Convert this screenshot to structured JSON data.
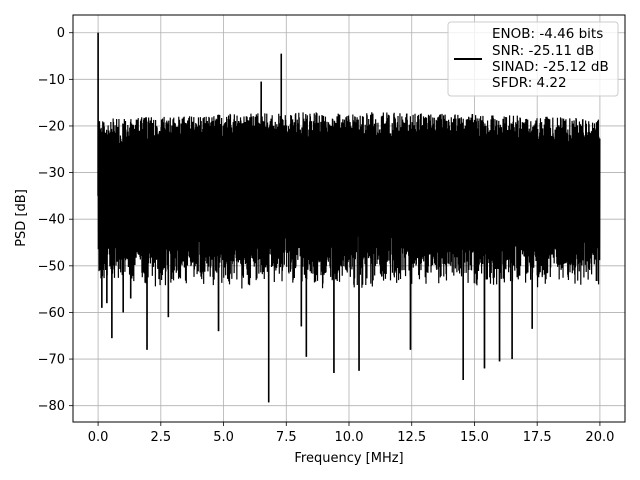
{
  "chart_data": {
    "type": "line",
    "title": "",
    "xlabel": "Frequency [MHz]",
    "ylabel": "PSD [dB]",
    "xlim": [
      -1.0,
      21.0
    ],
    "ylim": [
      -83.5,
      3.8
    ],
    "grid": true,
    "legend_placement": "top-right",
    "x_ticks": [
      0.0,
      2.5,
      5.0,
      7.5,
      10.0,
      12.5,
      15.0,
      17.5,
      20.0
    ],
    "x_tick_labels": [
      "0.0",
      "2.5",
      "5.0",
      "7.5",
      "10.0",
      "12.5",
      "15.0",
      "17.5",
      "20.0"
    ],
    "y_ticks": [
      0,
      -10,
      -20,
      -30,
      -40,
      -50,
      -60,
      -70,
      -80
    ],
    "y_tick_labels": [
      "0",
      "−10",
      "−20",
      "−30",
      "−40",
      "−50",
      "−60",
      "−70",
      "−80"
    ],
    "series": [
      {
        "color": "#000000",
        "legend_lines": [
          "ENOB: -4.46 bits",
          "SNR: -25.11 dB",
          "SINAD: -25.12 dB",
          "SFDR: 4.22"
        ],
        "noise_band": {
          "x_range": [
            0.0,
            20.0
          ],
          "upper_envelope": [
            -20,
            -17
          ],
          "typical_lower": [
            -48,
            -55
          ]
        },
        "spikes": [
          {
            "x": 0.0,
            "y": 0.0
          },
          {
            "x": 0.05,
            "y": -19
          },
          {
            "x": 0.15,
            "y": -59
          },
          {
            "x": 0.35,
            "y": -58
          },
          {
            "x": 0.55,
            "y": -65.5
          },
          {
            "x": 1.0,
            "y": -60
          },
          {
            "x": 1.3,
            "y": -57
          },
          {
            "x": 1.95,
            "y": -68
          },
          {
            "x": 2.8,
            "y": -61
          },
          {
            "x": 4.8,
            "y": -64
          },
          {
            "x": 6.5,
            "y": -10.5
          },
          {
            "x": 6.8,
            "y": -79.3
          },
          {
            "x": 7.3,
            "y": -4.5
          },
          {
            "x": 8.1,
            "y": -63
          },
          {
            "x": 8.3,
            "y": -69.5
          },
          {
            "x": 9.4,
            "y": -73
          },
          {
            "x": 10.4,
            "y": -72.5
          },
          {
            "x": 12.45,
            "y": -68
          },
          {
            "x": 14.55,
            "y": -74.5
          },
          {
            "x": 15.4,
            "y": -72
          },
          {
            "x": 16.0,
            "y": -70.5
          },
          {
            "x": 16.5,
            "y": -70
          },
          {
            "x": 17.3,
            "y": -63.5
          }
        ]
      }
    ]
  }
}
